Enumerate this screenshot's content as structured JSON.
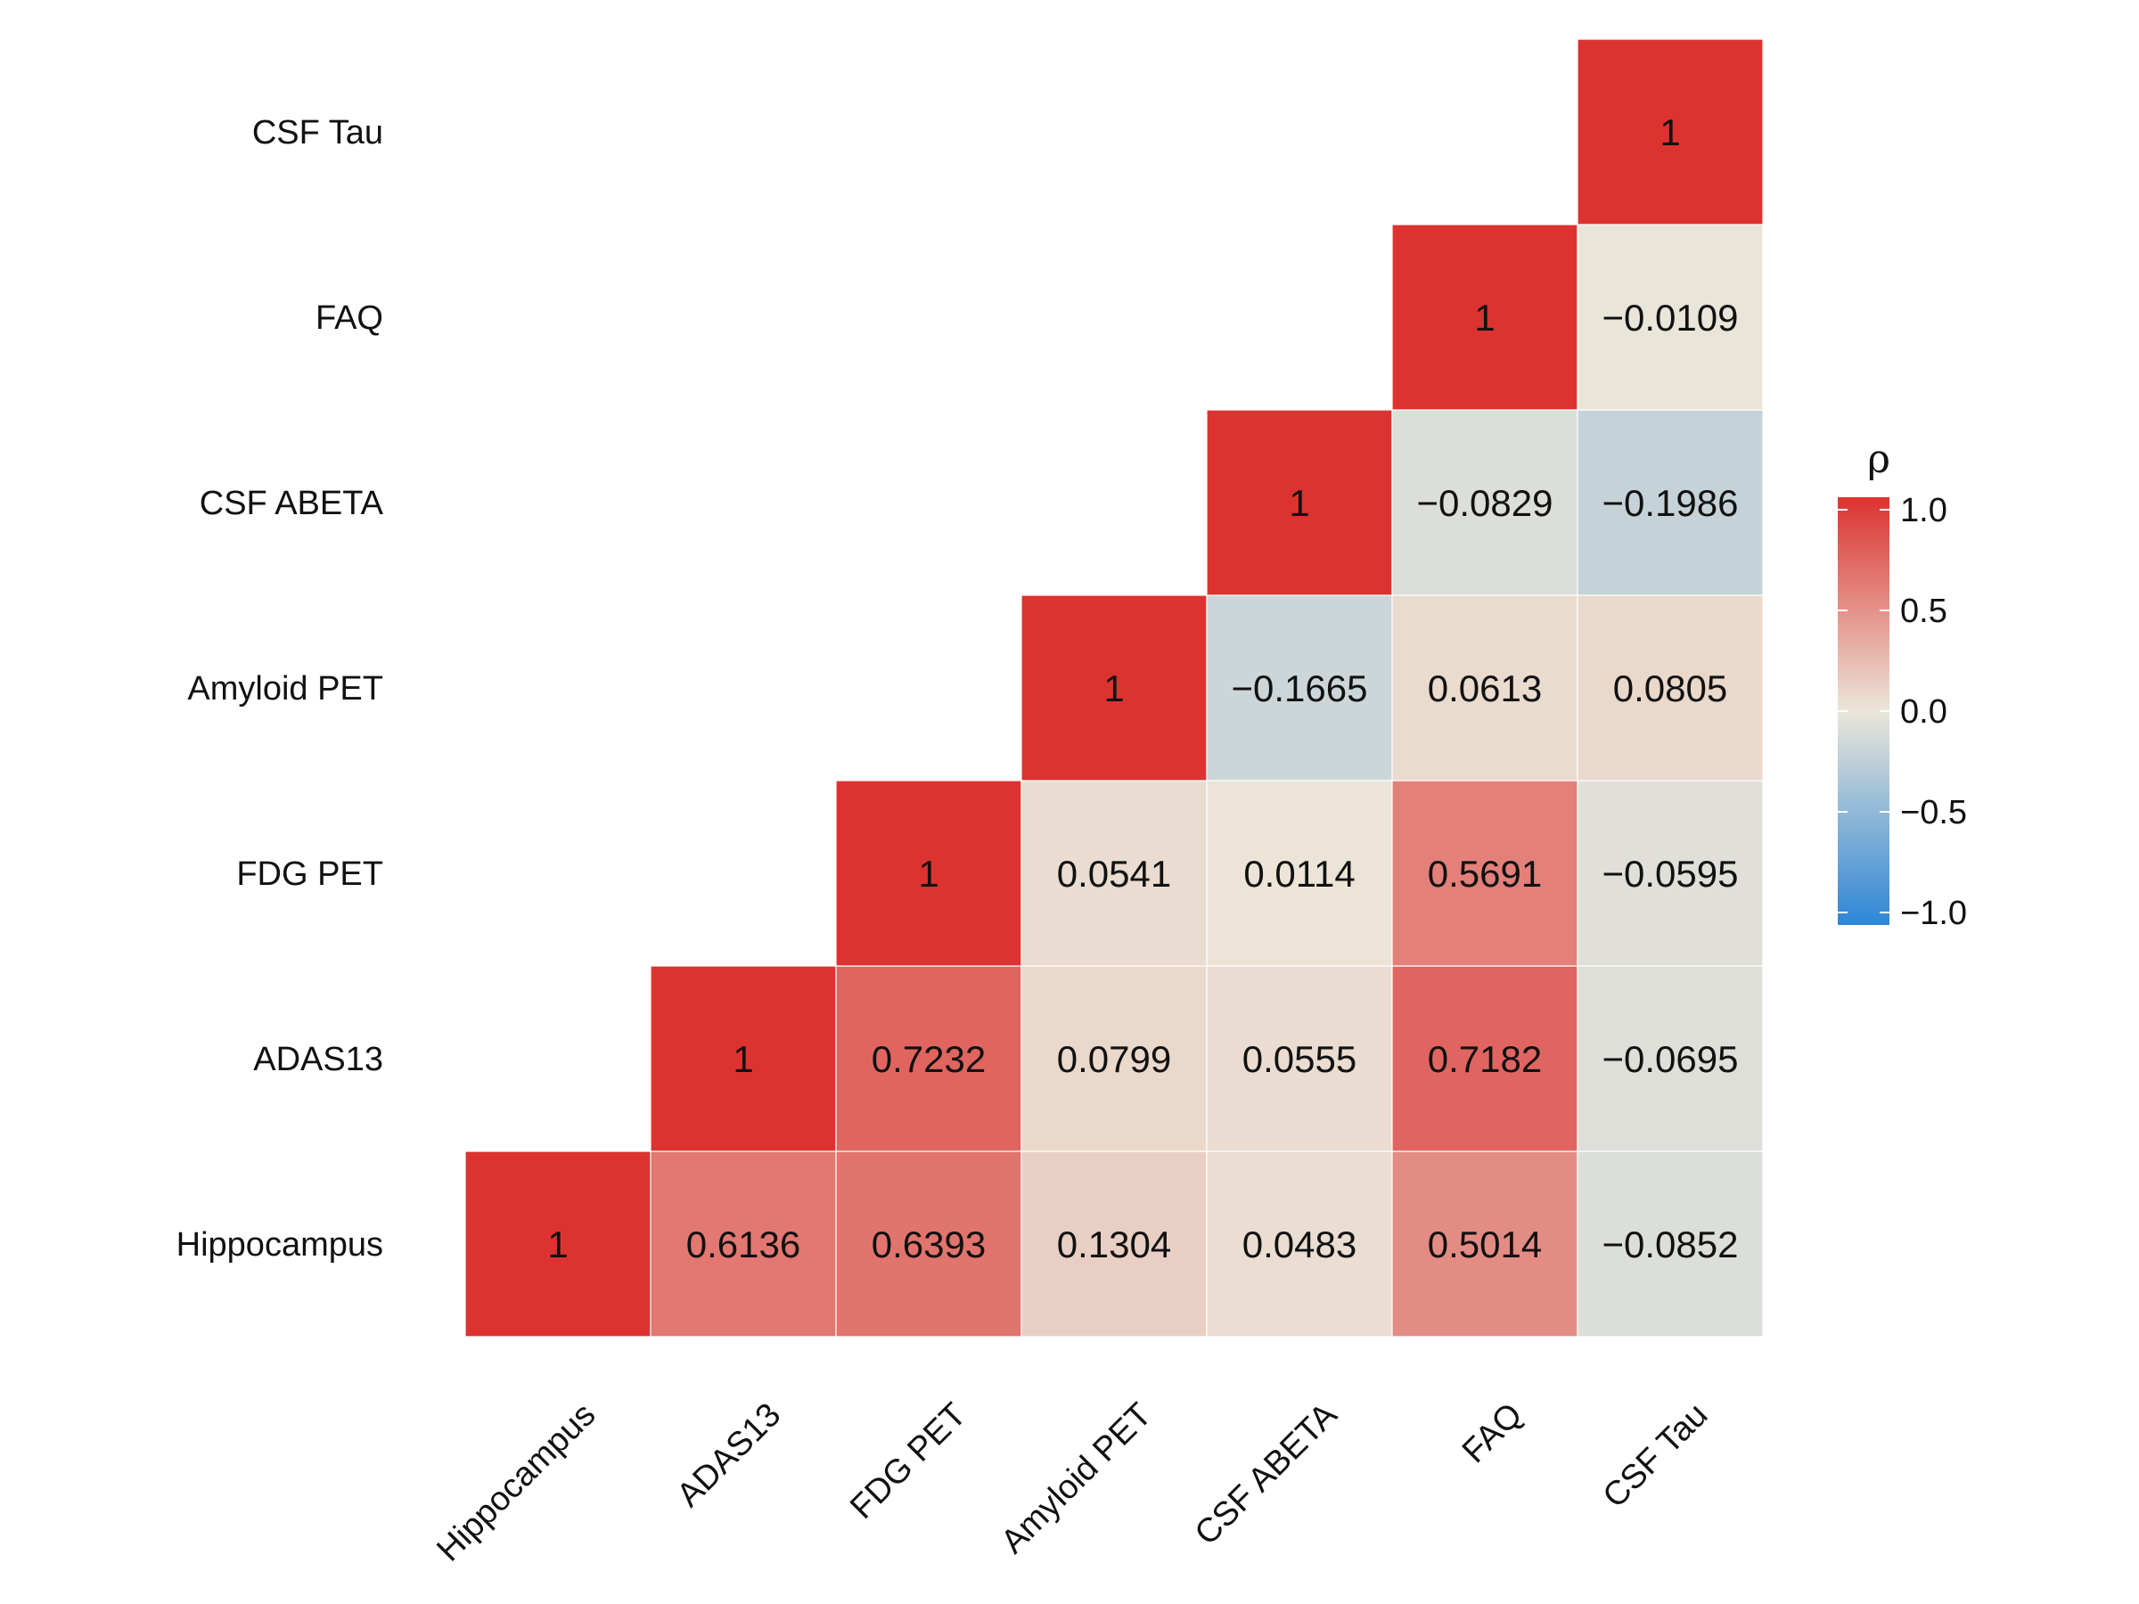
{
  "chart_data": {
    "type": "heatmap",
    "title": "",
    "variables": [
      "Hippocampus",
      "ADAS13",
      "FDG PET",
      "Amyloid PET",
      "CSF ABETA",
      "FAQ",
      "CSF Tau"
    ],
    "cells": [
      {
        "row": "Hippocampus",
        "col": "Hippocampus",
        "value": 1,
        "label": "1"
      },
      {
        "row": "Hippocampus",
        "col": "ADAS13",
        "value": 0.6136,
        "label": "0.6136"
      },
      {
        "row": "Hippocampus",
        "col": "FDG PET",
        "value": 0.6393,
        "label": "0.6393"
      },
      {
        "row": "Hippocampus",
        "col": "Amyloid PET",
        "value": 0.1304,
        "label": "0.1304"
      },
      {
        "row": "Hippocampus",
        "col": "CSF ABETA",
        "value": 0.0483,
        "label": "0.0483"
      },
      {
        "row": "Hippocampus",
        "col": "FAQ",
        "value": 0.5014,
        "label": "0.5014"
      },
      {
        "row": "Hippocampus",
        "col": "CSF Tau",
        "value": -0.0852,
        "label": "−0.0852"
      },
      {
        "row": "ADAS13",
        "col": "ADAS13",
        "value": 1,
        "label": "1"
      },
      {
        "row": "ADAS13",
        "col": "FDG PET",
        "value": 0.7232,
        "label": "0.7232"
      },
      {
        "row": "ADAS13",
        "col": "Amyloid PET",
        "value": 0.0799,
        "label": "0.0799"
      },
      {
        "row": "ADAS13",
        "col": "CSF ABETA",
        "value": 0.0555,
        "label": "0.0555"
      },
      {
        "row": "ADAS13",
        "col": "FAQ",
        "value": 0.7182,
        "label": "0.7182"
      },
      {
        "row": "ADAS13",
        "col": "CSF Tau",
        "value": -0.0695,
        "label": "−0.0695"
      },
      {
        "row": "FDG PET",
        "col": "FDG PET",
        "value": 1,
        "label": "1"
      },
      {
        "row": "FDG PET",
        "col": "Amyloid PET",
        "value": 0.0541,
        "label": "0.0541"
      },
      {
        "row": "FDG PET",
        "col": "CSF ABETA",
        "value": 0.0114,
        "label": "0.0114"
      },
      {
        "row": "FDG PET",
        "col": "FAQ",
        "value": 0.5691,
        "label": "0.5691"
      },
      {
        "row": "FDG PET",
        "col": "CSF Tau",
        "value": -0.0595,
        "label": "−0.0595"
      },
      {
        "row": "Amyloid PET",
        "col": "Amyloid PET",
        "value": 1,
        "label": "1"
      },
      {
        "row": "Amyloid PET",
        "col": "CSF ABETA",
        "value": -0.1665,
        "label": "−0.1665"
      },
      {
        "row": "Amyloid PET",
        "col": "FAQ",
        "value": 0.0613,
        "label": "0.0613"
      },
      {
        "row": "Amyloid PET",
        "col": "CSF Tau",
        "value": 0.0805,
        "label": "0.0805"
      },
      {
        "row": "CSF ABETA",
        "col": "CSF ABETA",
        "value": 1,
        "label": "1"
      },
      {
        "row": "CSF ABETA",
        "col": "FAQ",
        "value": -0.0829,
        "label": "−0.0829"
      },
      {
        "row": "CSF ABETA",
        "col": "CSF Tau",
        "value": -0.1986,
        "label": "−0.1986"
      },
      {
        "row": "FAQ",
        "col": "FAQ",
        "value": 1,
        "label": "1"
      },
      {
        "row": "FAQ",
        "col": "CSF Tau",
        "value": -0.0109,
        "label": "−0.0109"
      },
      {
        "row": "CSF Tau",
        "col": "CSF Tau",
        "value": 1,
        "label": "1"
      }
    ],
    "legend": {
      "title": "ρ",
      "range": [
        -1,
        1
      ],
      "breaks": [
        1.0,
        0.5,
        0.0,
        -0.5,
        -1.0
      ],
      "break_labels": [
        "1.0",
        "0.5",
        "0.0",
        "−0.5",
        "−1.0"
      ],
      "colors": {
        "low": "#2e86d6",
        "mid": "#ebe6d9",
        "high": "#dc3330"
      },
      "placement": "right"
    }
  }
}
